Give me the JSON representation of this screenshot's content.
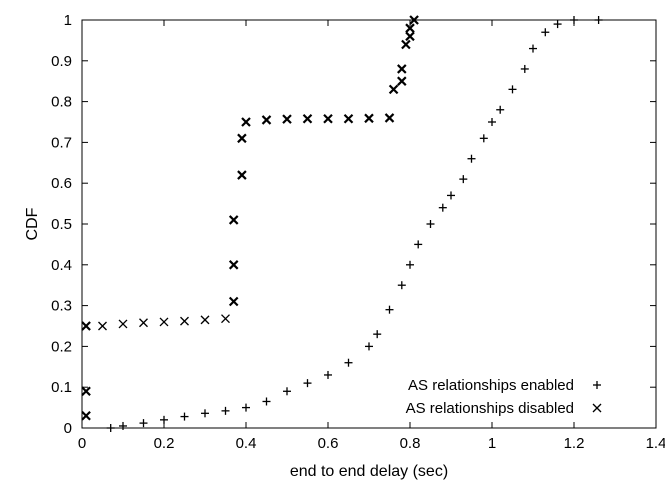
{
  "chart_data": {
    "type": "scatter",
    "title": "",
    "xlabel": "end to end delay (sec)",
    "ylabel": "CDF",
    "xlim": [
      0,
      1.4
    ],
    "ylim": [
      0,
      1
    ],
    "xticks": [
      "0",
      "0.2",
      "0.4",
      "0.6",
      "0.8",
      "1",
      "1.2",
      "1.4"
    ],
    "yticks": [
      "0",
      "0.1",
      "0.2",
      "0.3",
      "0.4",
      "0.5",
      "0.6",
      "0.7",
      "0.8",
      "0.9",
      "1"
    ],
    "grid": false,
    "legend_position": "bottom-right",
    "series": [
      {
        "name": "AS relationships enabled",
        "marker": "plus",
        "points": [
          [
            0.07,
            0.0
          ],
          [
            0.1,
            0.005
          ],
          [
            0.15,
            0.012
          ],
          [
            0.2,
            0.02
          ],
          [
            0.25,
            0.028
          ],
          [
            0.3,
            0.036
          ],
          [
            0.35,
            0.042
          ],
          [
            0.4,
            0.05
          ],
          [
            0.45,
            0.065
          ],
          [
            0.5,
            0.09
          ],
          [
            0.55,
            0.11
          ],
          [
            0.6,
            0.13
          ],
          [
            0.65,
            0.16
          ],
          [
            0.7,
            0.2
          ],
          [
            0.72,
            0.23
          ],
          [
            0.75,
            0.29
          ],
          [
            0.78,
            0.35
          ],
          [
            0.8,
            0.4
          ],
          [
            0.82,
            0.45
          ],
          [
            0.85,
            0.5
          ],
          [
            0.88,
            0.54
          ],
          [
            0.9,
            0.57
          ],
          [
            0.93,
            0.61
          ],
          [
            0.95,
            0.66
          ],
          [
            0.98,
            0.71
          ],
          [
            1.0,
            0.75
          ],
          [
            1.02,
            0.78
          ],
          [
            1.05,
            0.83
          ],
          [
            1.08,
            0.88
          ],
          [
            1.1,
            0.93
          ],
          [
            1.13,
            0.97
          ],
          [
            1.16,
            0.99
          ],
          [
            1.2,
            1.0
          ],
          [
            1.26,
            1.0
          ]
        ]
      },
      {
        "name": "AS relationships disabled",
        "marker": "cross",
        "points": [
          [
            0.01,
            0.03
          ],
          [
            0.01,
            0.09
          ],
          [
            0.01,
            0.25
          ],
          [
            0.05,
            0.25
          ],
          [
            0.1,
            0.255
          ],
          [
            0.15,
            0.258
          ],
          [
            0.2,
            0.26
          ],
          [
            0.25,
            0.262
          ],
          [
            0.3,
            0.265
          ],
          [
            0.35,
            0.268
          ],
          [
            0.37,
            0.31
          ],
          [
            0.37,
            0.4
          ],
          [
            0.37,
            0.51
          ],
          [
            0.39,
            0.62
          ],
          [
            0.39,
            0.71
          ],
          [
            0.4,
            0.75
          ],
          [
            0.45,
            0.755
          ],
          [
            0.5,
            0.757
          ],
          [
            0.55,
            0.758
          ],
          [
            0.6,
            0.758
          ],
          [
            0.65,
            0.758
          ],
          [
            0.7,
            0.759
          ],
          [
            0.75,
            0.76
          ],
          [
            0.76,
            0.83
          ],
          [
            0.78,
            0.85
          ],
          [
            0.78,
            0.88
          ],
          [
            0.79,
            0.94
          ],
          [
            0.8,
            0.96
          ],
          [
            0.8,
            0.98
          ],
          [
            0.81,
            1.0
          ]
        ]
      }
    ]
  }
}
